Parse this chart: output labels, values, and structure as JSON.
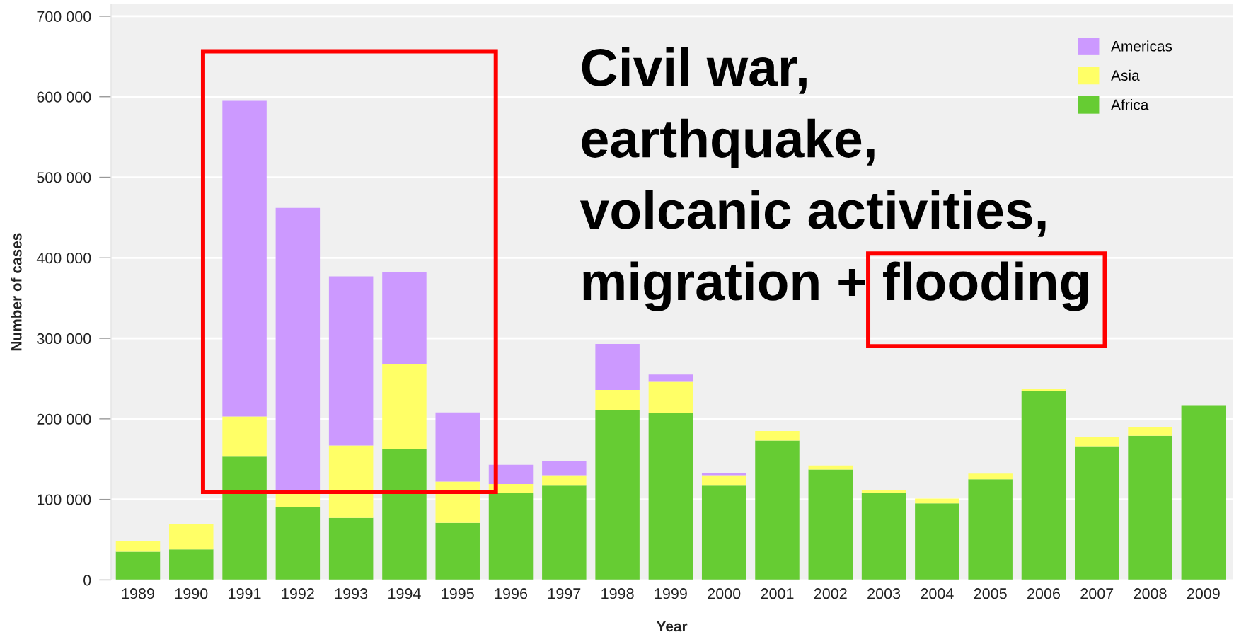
{
  "chart_data": {
    "type": "bar",
    "stacked": true,
    "xlabel": "Year",
    "ylabel": "Number of cases",
    "categories": [
      "1989",
      "1990",
      "1991",
      "1992",
      "1993",
      "1994",
      "1995",
      "1996",
      "1997",
      "1998",
      "1999",
      "2000",
      "2001",
      "2002",
      "2003",
      "2004",
      "2005",
      "2006",
      "2007",
      "2008",
      "2009"
    ],
    "series": [
      {
        "name": "Africa",
        "color": "#66cc33",
        "values": [
          35000,
          38000,
          153000,
          91000,
          77000,
          162000,
          71000,
          108000,
          118000,
          211000,
          207000,
          118000,
          173000,
          137000,
          108000,
          95000,
          125000,
          235000,
          166000,
          179000,
          217000
        ]
      },
      {
        "name": "Asia",
        "color": "#ffff66",
        "values": [
          13000,
          31000,
          50000,
          16000,
          90000,
          106000,
          51000,
          11000,
          12000,
          25000,
          39000,
          12000,
          12000,
          5000,
          4000,
          6000,
          7000,
          2000,
          12000,
          11000,
          0
        ]
      },
      {
        "name": "Americas",
        "color": "#cc99ff",
        "values": [
          0,
          0,
          392000,
          355000,
          210000,
          114000,
          86000,
          24000,
          18000,
          57000,
          9000,
          3000,
          0,
          0,
          0,
          0,
          0,
          0,
          0,
          0,
          0
        ]
      }
    ],
    "ylim": [
      0,
      715000
    ],
    "yticks": [
      0,
      {
        "value": 100000,
        "label": "100 000"
      },
      {
        "value": 200000,
        "label": "200 000"
      },
      {
        "value": 300000,
        "label": "300 000"
      },
      {
        "value": 400000,
        "label": "400 000"
      },
      {
        "value": 500000,
        "label": "500 000"
      },
      {
        "value": 600000,
        "label": "600 000"
      },
      {
        "value": 700000,
        "label": "700 000"
      }
    ],
    "grid": "y",
    "legend": "top right",
    "annotations": [
      "Civil war,\nearthquake,\nvolcanic activities,\nmigration + flooding"
    ]
  }
}
